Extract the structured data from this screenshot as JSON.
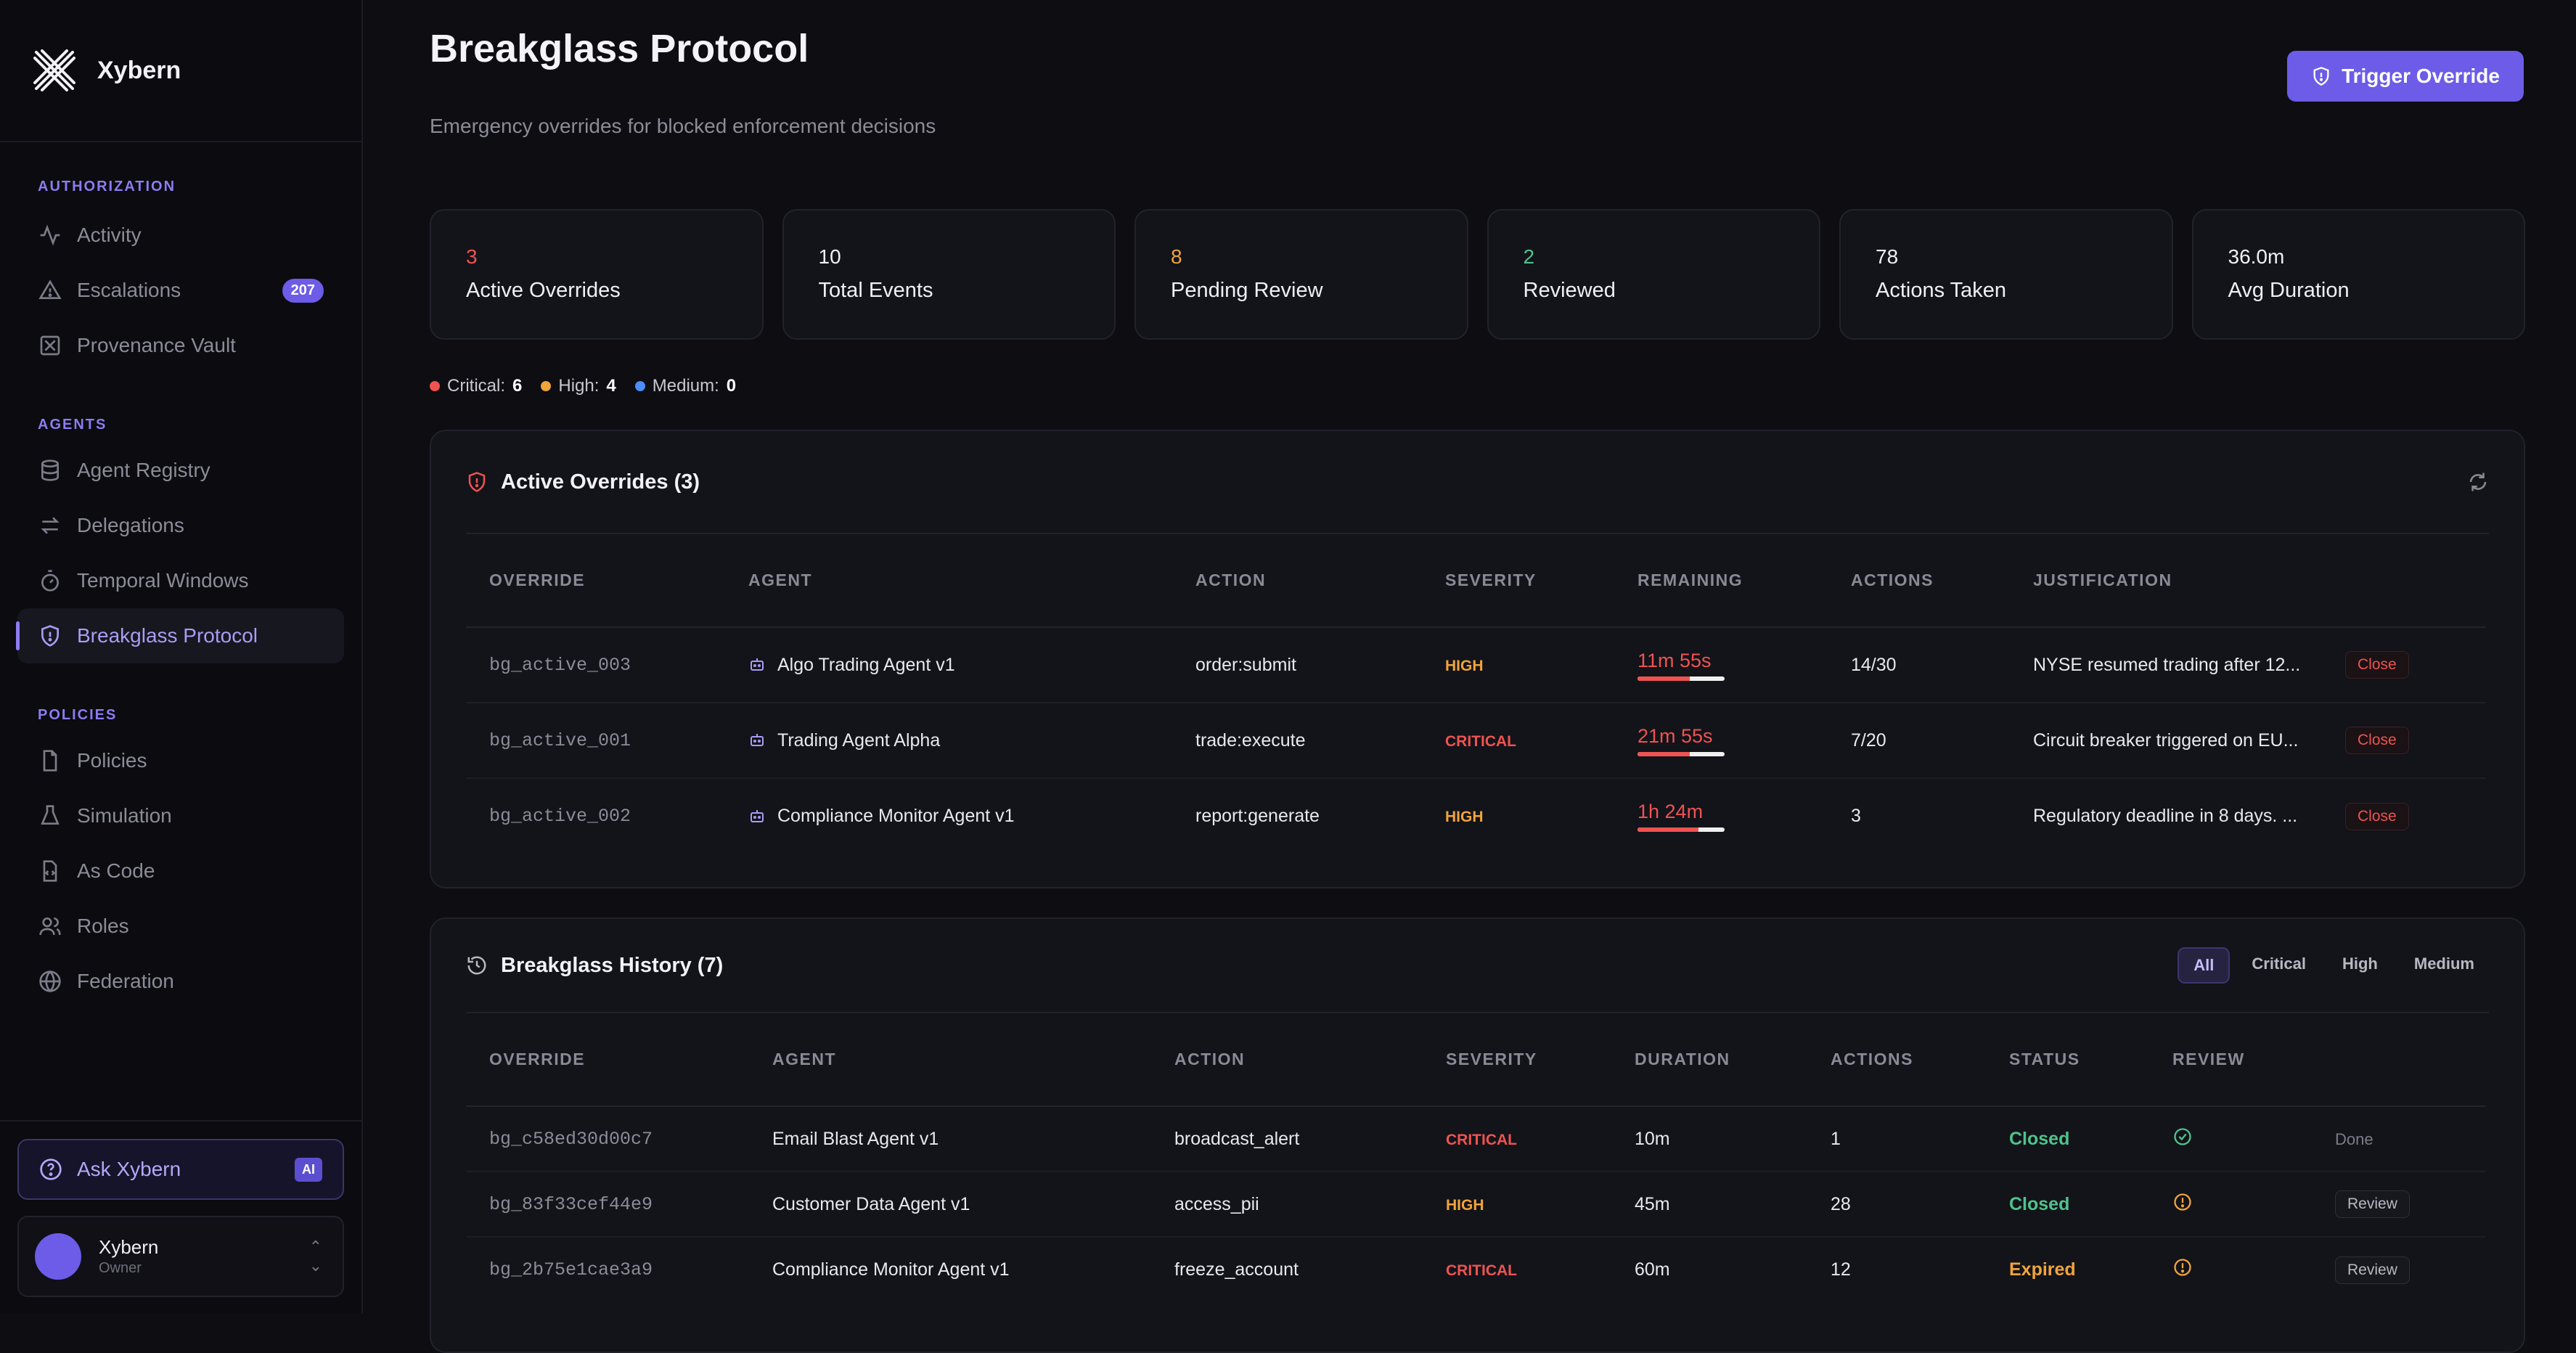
{
  "brand": {
    "name": "Xybern"
  },
  "sidebar": {
    "sections": [
      {
        "label": "AUTHORIZATION",
        "items": [
          {
            "label": "Activity",
            "icon": "activity-icon"
          },
          {
            "label": "Escalations",
            "icon": "alert-triangle-icon",
            "badge": "207"
          },
          {
            "label": "Provenance Vault",
            "icon": "vault-icon"
          }
        ]
      },
      {
        "label": "AGENTS",
        "items": [
          {
            "label": "Agent Registry",
            "icon": "database-icon"
          },
          {
            "label": "Delegations",
            "icon": "swap-icon"
          },
          {
            "label": "Temporal Windows",
            "icon": "timer-icon"
          },
          {
            "label": "Breakglass Protocol",
            "icon": "shield-icon",
            "active": true
          }
        ]
      },
      {
        "label": "POLICIES",
        "items": [
          {
            "label": "Policies",
            "icon": "file-icon"
          },
          {
            "label": "Simulation",
            "icon": "flask-icon"
          },
          {
            "label": "As Code",
            "icon": "code-file-icon"
          },
          {
            "label": "Roles",
            "icon": "users-icon"
          },
          {
            "label": "Federation",
            "icon": "globe-icon"
          }
        ]
      }
    ],
    "ask": {
      "label": "Ask Xybern",
      "chip": "AI"
    },
    "user": {
      "name": "Xybern",
      "role": "Owner"
    }
  },
  "header": {
    "title": "Breakglass Protocol",
    "subtitle": "Emergency overrides for blocked enforcement decisions",
    "trigger_label": "Trigger Override"
  },
  "stats": [
    {
      "value": "3",
      "label": "Active Overrides",
      "color": "#ef5350"
    },
    {
      "value": "10",
      "label": "Total Events",
      "color": "#f0f0f4"
    },
    {
      "value": "8",
      "label": "Pending Review",
      "color": "#f0a43a"
    },
    {
      "value": "2",
      "label": "Reviewed",
      "color": "#4fc38a"
    },
    {
      "value": "78",
      "label": "Actions Taken",
      "color": "#f0f0f4"
    },
    {
      "value": "36.0m",
      "label": "Avg Duration",
      "color": "#f0f0f4"
    }
  ],
  "legend": [
    {
      "label": "Critical:",
      "count": "6",
      "color": "#ef5350"
    },
    {
      "label": "High:",
      "count": "4",
      "color": "#f0a43a"
    },
    {
      "label": "Medium:",
      "count": "0",
      "color": "#4c8ef7"
    }
  ],
  "active": {
    "title": "Active Overrides (3)",
    "columns": [
      "OVERRIDE",
      "AGENT",
      "ACTION",
      "SEVERITY",
      "REMAINING",
      "ACTIONS",
      "JUSTIFICATION",
      ""
    ],
    "close_label": "Close",
    "rows": [
      {
        "id": "bg_active_003",
        "agent": "Algo Trading Agent v1",
        "action": "order:submit",
        "severity": "HIGH",
        "remaining": "11m 55s",
        "remaining_frac": 0.6,
        "actions": "14/30",
        "justification": "NYSE resumed trading after 12..."
      },
      {
        "id": "bg_active_001",
        "agent": "Trading Agent Alpha",
        "action": "trade:execute",
        "severity": "CRITICAL",
        "remaining": "21m 55s",
        "remaining_frac": 0.6,
        "actions": "7/20",
        "justification": "Circuit breaker triggered on EU..."
      },
      {
        "id": "bg_active_002",
        "agent": "Compliance Monitor Agent v1",
        "action": "report:generate",
        "severity": "HIGH",
        "remaining": "1h 24m",
        "remaining_frac": 0.7,
        "actions": "3",
        "justification": "Regulatory deadline in 8 days. ..."
      }
    ]
  },
  "history": {
    "title": "Breakglass History (7)",
    "filters": [
      "All",
      "Critical",
      "High",
      "Medium"
    ],
    "columns": [
      "OVERRIDE",
      "AGENT",
      "ACTION",
      "SEVERITY",
      "DURATION",
      "ACTIONS",
      "STATUS",
      "REVIEW",
      ""
    ],
    "rows": [
      {
        "id": "bg_c58ed30d00c7",
        "agent": "Email Blast Agent v1",
        "action": "broadcast_alert",
        "severity": "CRITICAL",
        "duration": "10m",
        "actions": "1",
        "status": "Closed",
        "review_icon": "check-circle-icon",
        "review_action": "Done"
      },
      {
        "id": "bg_83f33cef44e9",
        "agent": "Customer Data Agent v1",
        "action": "access_pii",
        "severity": "HIGH",
        "duration": "45m",
        "actions": "28",
        "status": "Closed",
        "review_icon": "warning-circle-icon",
        "review_action": "Review"
      },
      {
        "id": "bg_2b75e1cae3a9",
        "agent": "Compliance Monitor Agent v1",
        "action": "freeze_account",
        "severity": "CRITICAL",
        "duration": "60m",
        "actions": "12",
        "status": "Expired",
        "review_icon": "warning-circle-icon",
        "review_action": "Review"
      }
    ]
  }
}
